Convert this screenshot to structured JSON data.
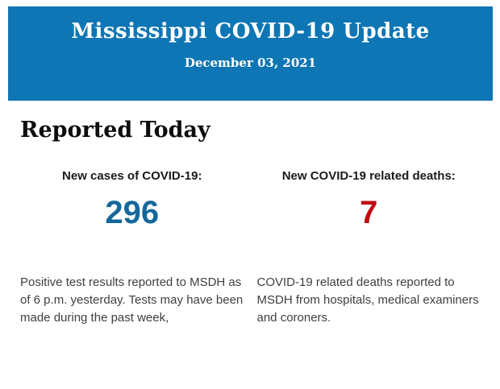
{
  "colors": {
    "banner_blue": "#0e76b4",
    "cases_blue": "#15689a",
    "deaths_red": "#c00712",
    "body_text": "#3f3f3f",
    "heading_black": "#0d0d0d",
    "banner_text": "#ffffff"
  },
  "banner": {
    "title": "Mississippi COVID-19 Update",
    "date": "December 03, 2021"
  },
  "main": {
    "heading": "Reported Today",
    "stats": [
      {
        "label": "New cases of COVID-19:",
        "value": "296",
        "description": "Positive test results reported to MSDH as of 6 p.m. yesterday. Tests may have been made during the past week,"
      },
      {
        "label": "New COVID-19 related deaths:",
        "value": "7",
        "description": "COVID-19 related deaths reported to MSDH from hospitals, medical examiners and coroners."
      }
    ]
  }
}
